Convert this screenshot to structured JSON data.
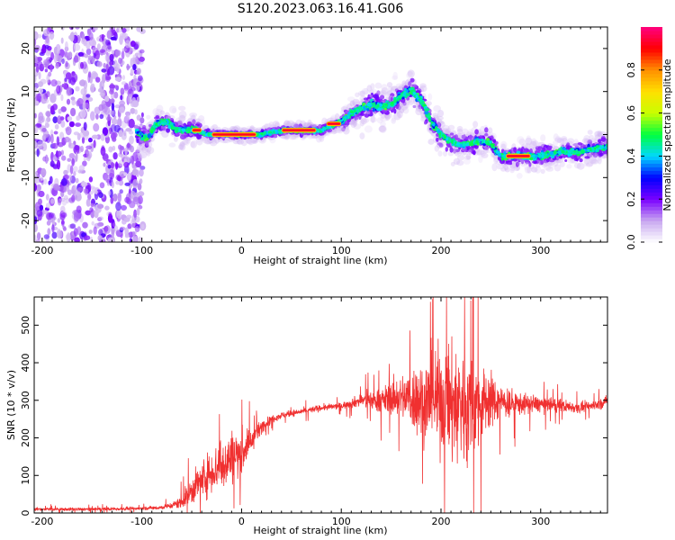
{
  "figure_title": "S120.2023.063.16.41.G06",
  "chart_data": [
    {
      "type": "heatmap",
      "name": "spectrogram",
      "xlabel": "Height of straight line (km)",
      "ylabel": "Frequency (Hz)",
      "xlim": [
        -208,
        367
      ],
      "ylim": [
        -25,
        25
      ],
      "xticks": [
        -200,
        -100,
        0,
        100,
        200,
        300
      ],
      "yticks": [
        -20,
        -10,
        0,
        10,
        20
      ],
      "colorbar": {
        "label": "Normalized spectral amplitude",
        "range": [
          0.0,
          1.0
        ],
        "ticks": [
          0.0,
          0.2,
          0.4,
          0.6,
          0.8
        ],
        "tick_labels": [
          "0.0",
          "0.2",
          "0.4",
          "0.6",
          "0.8"
        ],
        "colormap": [
          "#ffffff",
          "#c8a8f0",
          "#7a00ff",
          "#0000ff",
          "#00d8ff",
          "#00ff40",
          "#c8ff00",
          "#ffe000",
          "#ff9000",
          "#ff0000",
          "#ff0080"
        ]
      },
      "ridge": {
        "x": [
          -105,
          -95,
          -85,
          -75,
          -65,
          -55,
          -45,
          -35,
          -20,
          0,
          20,
          30,
          45,
          60,
          70,
          80,
          90,
          100,
          110,
          120,
          130,
          140,
          150,
          160,
          170,
          175,
          180,
          185,
          190,
          200,
          210,
          220,
          230,
          240,
          250,
          260,
          270,
          280,
          300,
          320,
          340,
          360,
          367
        ],
        "y": [
          0.5,
          -1.0,
          2.5,
          3.0,
          1.0,
          1.0,
          1.0,
          0.0,
          0.0,
          0.0,
          0.0,
          0.5,
          1.0,
          1.0,
          1.0,
          1.0,
          2.0,
          3.0,
          5.0,
          6.0,
          7.0,
          6.5,
          7.0,
          9.0,
          10.5,
          9.0,
          8.0,
          6.0,
          3.0,
          0.0,
          -1.5,
          -2.5,
          -2.0,
          -1.5,
          -2.0,
          -5.0,
          -5.0,
          -5.0,
          -5.0,
          -4.0,
          -4.0,
          -3.0,
          -3.0
        ]
      },
      "peak_segments": [
        {
          "x": [
            -50,
            -40
          ],
          "y": 1.0
        },
        {
          "x": [
            -30,
            15
          ],
          "y": 0.0
        },
        {
          "x": [
            40,
            75
          ],
          "y": 1.0
        },
        {
          "x": [
            85,
            100
          ],
          "y": 2.5
        },
        {
          "x": [
            265,
            290
          ],
          "y": -5.0
        }
      ],
      "noise_region_x": [
        -208,
        -105
      ]
    },
    {
      "type": "line",
      "name": "snr",
      "xlabel": "Height of straight line (km)",
      "ylabel": "SNR (10 * v/v)",
      "xlim": [
        -208,
        367
      ],
      "ylim": [
        0,
        575
      ],
      "xticks": [
        -200,
        -100,
        0,
        100,
        200,
        300
      ],
      "yticks": [
        0,
        100,
        200,
        300,
        400,
        500
      ],
      "color": "#f03030",
      "envelope": {
        "x": [
          -208,
          -150,
          -100,
          -80,
          -70,
          -60,
          -50,
          -40,
          -30,
          -20,
          -10,
          0,
          10,
          20,
          30,
          40,
          60,
          80,
          100,
          120,
          140,
          160,
          180,
          200,
          210,
          220,
          230,
          240,
          250,
          260,
          280,
          300,
          320,
          340,
          360,
          367
        ],
        "mean": [
          10,
          10,
          12,
          15,
          20,
          30,
          60,
          90,
          110,
          130,
          150,
          160,
          190,
          230,
          250,
          260,
          270,
          280,
          285,
          300,
          300,
          310,
          300,
          300,
          290,
          290,
          280,
          290,
          300,
          295,
          290,
          290,
          285,
          280,
          290,
          300
        ],
        "spread": [
          6,
          6,
          6,
          8,
          12,
          25,
          55,
          70,
          80,
          100,
          100,
          90,
          40,
          25,
          15,
          12,
          12,
          12,
          12,
          25,
          45,
          80,
          150,
          200,
          220,
          240,
          200,
          150,
          100,
          70,
          40,
          30,
          25,
          20,
          20,
          20
        ]
      }
    }
  ]
}
